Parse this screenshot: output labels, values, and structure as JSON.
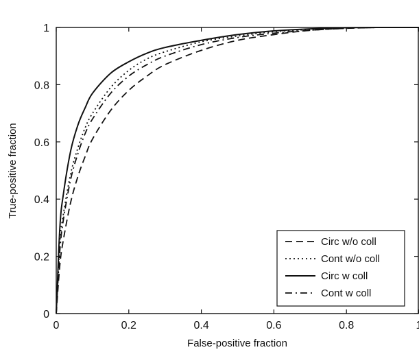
{
  "chart_data": {
    "type": "line",
    "xlabel": "False-positive fraction",
    "ylabel": "True-positive fraction",
    "xlim": [
      0,
      1
    ],
    "ylim": [
      0,
      1
    ],
    "xticks": [
      0,
      0.2,
      0.4,
      0.6,
      0.8,
      1
    ],
    "xtick_labels": [
      "0",
      "0.2",
      "0.4",
      "0.6",
      "0.8",
      "1"
    ],
    "yticks": [
      0,
      0.2,
      0.4,
      0.6,
      0.8,
      1
    ],
    "ytick_labels": [
      "0",
      "0.2",
      "0.4",
      "0.6",
      "0.8",
      "1"
    ],
    "grid": false,
    "legend_position": "bottom-right",
    "series": [
      {
        "name": "Circ w/o coll",
        "line_style": "dashed",
        "x": [
          0,
          0.01,
          0.02,
          0.04,
          0.06,
          0.08,
          0.1,
          0.15,
          0.2,
          0.25,
          0.3,
          0.4,
          0.5,
          0.6,
          0.7,
          0.8,
          0.9,
          1
        ],
        "y": [
          0,
          0.17,
          0.26,
          0.39,
          0.48,
          0.55,
          0.61,
          0.71,
          0.78,
          0.83,
          0.87,
          0.92,
          0.955,
          0.975,
          0.99,
          0.997,
          1,
          1
        ]
      },
      {
        "name": "Cont w/o coll",
        "line_style": "dotted",
        "x": [
          0,
          0.01,
          0.02,
          0.04,
          0.06,
          0.08,
          0.1,
          0.15,
          0.2,
          0.25,
          0.3,
          0.4,
          0.5,
          0.6,
          0.7,
          0.8,
          0.9,
          1
        ],
        "y": [
          0,
          0.25,
          0.35,
          0.49,
          0.58,
          0.65,
          0.7,
          0.79,
          0.85,
          0.89,
          0.915,
          0.95,
          0.97,
          0.985,
          0.993,
          0.998,
          1,
          1
        ]
      },
      {
        "name": "Circ w coll",
        "line_style": "solid",
        "x": [
          0,
          0.01,
          0.02,
          0.04,
          0.06,
          0.08,
          0.1,
          0.15,
          0.2,
          0.25,
          0.3,
          0.4,
          0.5,
          0.6,
          0.7,
          0.8,
          0.9,
          1
        ],
        "y": [
          0,
          0.3,
          0.42,
          0.57,
          0.66,
          0.72,
          0.77,
          0.84,
          0.88,
          0.91,
          0.93,
          0.955,
          0.975,
          0.988,
          0.995,
          0.999,
          1,
          1
        ]
      },
      {
        "name": "Cont w coll",
        "line_style": "dashdot",
        "x": [
          0,
          0.01,
          0.02,
          0.04,
          0.06,
          0.08,
          0.1,
          0.15,
          0.2,
          0.25,
          0.3,
          0.4,
          0.5,
          0.6,
          0.7,
          0.8,
          0.9,
          1
        ],
        "y": [
          0,
          0.22,
          0.33,
          0.47,
          0.56,
          0.63,
          0.68,
          0.77,
          0.83,
          0.87,
          0.9,
          0.94,
          0.965,
          0.98,
          0.99,
          0.997,
          1,
          1
        ]
      }
    ]
  },
  "colors": {
    "line": "#111111",
    "background": "#ffffff"
  }
}
